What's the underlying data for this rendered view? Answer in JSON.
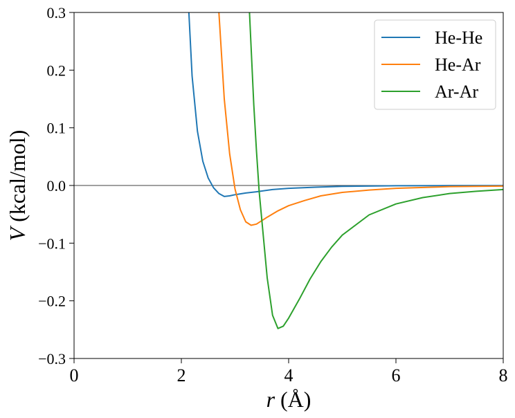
{
  "chart_data": {
    "type": "line",
    "xlabel_var": "r",
    "xlabel_unit": " (Å)",
    "ylabel_var": "V",
    "ylabel_unit": " (kcal/mol)",
    "xlim": [
      0,
      8
    ],
    "ylim": [
      -0.3,
      0.3
    ],
    "xticks": [
      0,
      2,
      4,
      6,
      8
    ],
    "xtick_labels": [
      "0",
      "2",
      "4",
      "6",
      "8"
    ],
    "yticks": [
      -0.3,
      -0.2,
      -0.1,
      0.0,
      0.1,
      0.2,
      0.3
    ],
    "ytick_labels": [
      "−0.3",
      "−0.2",
      "−0.1",
      "0.0",
      "0.1",
      "0.2",
      "0.3"
    ],
    "zero_line": true,
    "grid": false,
    "legend_placement": "top-right",
    "series": [
      {
        "name": "He-He",
        "color": "#1f77b4",
        "x": [
          2.14,
          2.2,
          2.3,
          2.4,
          2.5,
          2.6,
          2.7,
          2.8,
          2.9,
          3.0,
          3.2,
          3.4,
          3.7,
          4.0,
          4.5,
          5.0,
          6.0,
          7.0,
          8.0
        ],
        "y": [
          0.3,
          0.19,
          0.094,
          0.042,
          0.013,
          -0.004,
          -0.014,
          -0.019,
          -0.018,
          -0.016,
          -0.013,
          -0.011,
          -0.007,
          -0.005,
          -0.003,
          -0.0015,
          -0.0005,
          -0.0002,
          -0.0001
        ]
      },
      {
        "name": "He-Ar",
        "color": "#ff7f0e",
        "x": [
          2.7,
          2.8,
          2.9,
          3.0,
          3.1,
          3.2,
          3.3,
          3.4,
          3.5,
          3.6,
          3.8,
          4.0,
          4.3,
          4.6,
          5.0,
          5.5,
          6.0,
          7.0,
          8.0
        ],
        "y": [
          0.3,
          0.15,
          0.055,
          -0.006,
          -0.042,
          -0.063,
          -0.069,
          -0.067,
          -0.061,
          -0.055,
          -0.044,
          -0.035,
          -0.026,
          -0.018,
          -0.012,
          -0.008,
          -0.005,
          -0.002,
          -0.001
        ]
      },
      {
        "name": "Ar-Ar",
        "color": "#2ca02c",
        "x": [
          3.27,
          3.3,
          3.35,
          3.4,
          3.45,
          3.5,
          3.6,
          3.7,
          3.8,
          3.9,
          4.0,
          4.2,
          4.4,
          4.6,
          4.8,
          5.0,
          5.5,
          6.0,
          6.5,
          7.0,
          7.5,
          8.0
        ],
        "y": [
          0.3,
          0.24,
          0.14,
          0.06,
          -0.01,
          -0.06,
          -0.16,
          -0.225,
          -0.248,
          -0.244,
          -0.23,
          -0.197,
          -0.162,
          -0.132,
          -0.107,
          -0.086,
          -0.051,
          -0.032,
          -0.021,
          -0.014,
          -0.01,
          -0.007
        ]
      }
    ]
  }
}
